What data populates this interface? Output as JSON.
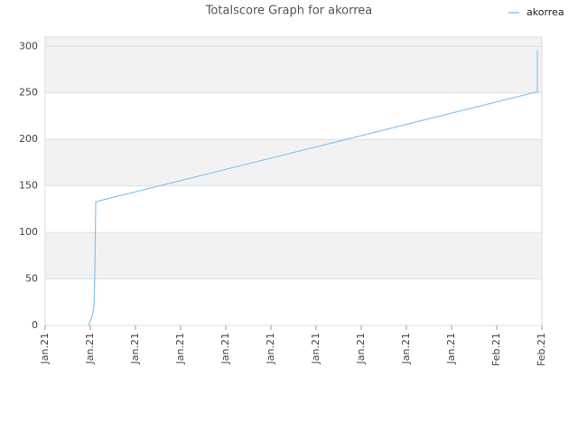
{
  "chart_data": {
    "type": "line",
    "title": "Totalscore Graph for akorrea",
    "series": [
      {
        "name": "akorrea",
        "color": "#88c4f0",
        "x": [
          0.96,
          1.0,
          1.04,
          1.08,
          1.1,
          1.12,
          10.88,
          10.9,
          10.9
        ],
        "values": [
          0,
          5,
          10,
          20,
          57,
          133,
          251,
          251,
          296
        ]
      }
    ],
    "xlim": [
      0,
      11
    ],
    "xticks": [
      {
        "value": 0,
        "label": "Jan.21"
      },
      {
        "value": 1,
        "label": "Jan.21"
      },
      {
        "value": 2,
        "label": "Jan.21"
      },
      {
        "value": 3,
        "label": "Jan.21"
      },
      {
        "value": 4,
        "label": "Jan.21"
      },
      {
        "value": 5,
        "label": "Jan.21"
      },
      {
        "value": 6,
        "label": "Jan.21"
      },
      {
        "value": 7,
        "label": "Jan.21"
      },
      {
        "value": 8,
        "label": "Jan.21"
      },
      {
        "value": 9,
        "label": "Jan.21"
      },
      {
        "value": 10,
        "label": "Feb.21"
      },
      {
        "value": 11,
        "label": "Feb.21"
      }
    ],
    "ylim": [
      0,
      310
    ],
    "yticks": [
      0,
      50,
      100,
      150,
      200,
      250,
      300
    ],
    "grid": true,
    "legend": "top-right"
  }
}
